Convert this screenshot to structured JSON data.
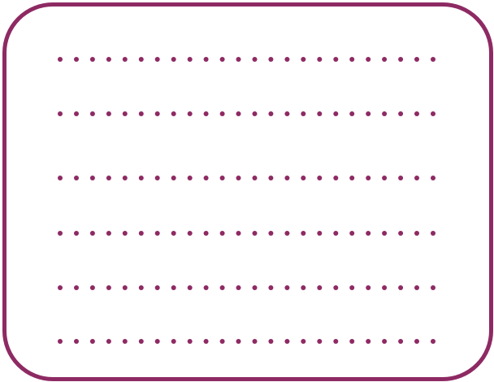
{
  "frame": {
    "shape": "rounded-rectangle",
    "border_color": "#8e2a63",
    "fill_color": "#ffffff"
  },
  "writing_lines": {
    "count": 6,
    "style": "dotted",
    "dots_per_line": 24,
    "dot_color": "#8e2a63"
  }
}
